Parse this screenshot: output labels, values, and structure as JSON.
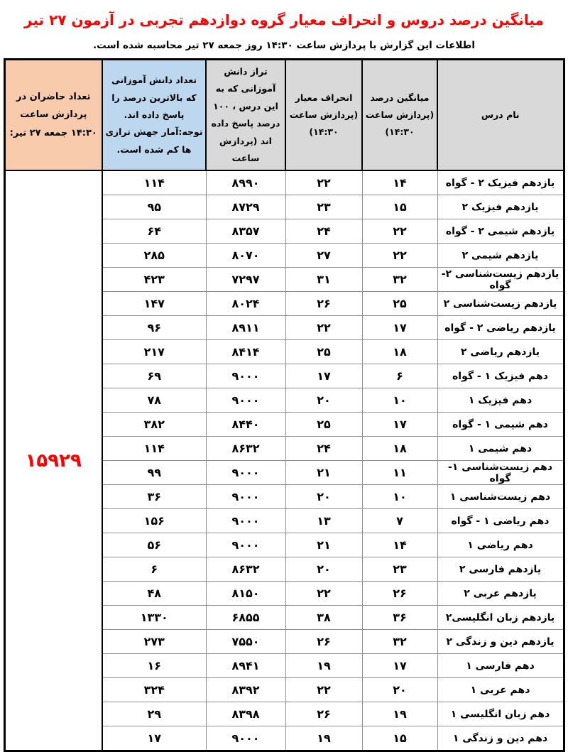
{
  "title": "میانگین درصد دروس و انحراف معیار گروه دوازدهم تجربی در آزمون ۲۷ تیر",
  "subtitle": "اطلاعات این گزارش با پردازش ساعت ۱۴:۳۰ روز جمعه ۲۷ تیر محاسبه شده است.",
  "colors": {
    "title_red": "#FF0000",
    "attendees_red": "#FF0000",
    "header_gray": "#D9D9D9",
    "header_blue": "#BDD7EE",
    "header_peach": "#F8CBAD"
  },
  "table": {
    "headers": {
      "lesson": "نام درس",
      "mean": "میانگین درصد (پردازش ساعت ۱۴:۳۰)",
      "stdev": "انحراف معیار (پردازش ساعت ۱۴:۳۰)",
      "score": "تراز دانش آموزانی که به این درس ، ۱۰۰ درصد پاسخ داده اند (پردازش ساعت",
      "top_count": "تعداد دانش آموزانی که بالاترین درصد را پاسخ داده اند. توجه:آمار جهش ترازی ها کم شده است.",
      "attendees": "تعداد حاضران در پردازش ساعت ۱۴:۳۰ جمعه ۲۷ تیر:"
    },
    "attendees_total": "۱۵۹۲۹",
    "rows": [
      {
        "lesson": "یازدهم فیزیک ۲ - گواه",
        "mean": "۱۴",
        "stdev": "۲۲",
        "score": "۸۹۹۰",
        "count": "۱۱۴"
      },
      {
        "lesson": "یازدهم فیزیک ۲",
        "mean": "۱۵",
        "stdev": "۲۳",
        "score": "۸۷۲۹",
        "count": "۹۵"
      },
      {
        "lesson": "یازدهم شیمی ۲ - گواه",
        "mean": "۲۲",
        "stdev": "۲۴",
        "score": "۸۳۵۷",
        "count": "۶۴"
      },
      {
        "lesson": "یازدهم شیمی ۲",
        "mean": "۲۲",
        "stdev": "۲۷",
        "score": "۸۰۷۰",
        "count": "۲۸۵"
      },
      {
        "lesson": "یازدهم زیست‌شناسی ۲-گواه",
        "mean": "۳۲",
        "stdev": "۳۱",
        "score": "۷۲۹۷",
        "count": "۴۲۳"
      },
      {
        "lesson": "یازدهم زیست‌شناسی ۲",
        "mean": "۲۵",
        "stdev": "۲۶",
        "score": "۸۰۲۴",
        "count": "۱۴۷"
      },
      {
        "lesson": "یازدهم ریاضی ۲ - گواه",
        "mean": "۱۷",
        "stdev": "۲۲",
        "score": "۸۹۱۱",
        "count": "۹۶"
      },
      {
        "lesson": "یازدهم ریاضی ۲",
        "mean": "۱۸",
        "stdev": "۲۵",
        "score": "۸۴۱۴",
        "count": "۲۱۷"
      },
      {
        "lesson": "دهم فیزیک ۱ - گواه",
        "mean": "۶",
        "stdev": "۱۷",
        "score": "۹۰۰۰",
        "count": "۶۹"
      },
      {
        "lesson": "دهم فیزیک ۱",
        "mean": "۱۰",
        "stdev": "۲۰",
        "score": "۹۰۰۰",
        "count": "۷۸"
      },
      {
        "lesson": "دهم شیمی ۱ - گواه",
        "mean": "۱۷",
        "stdev": "۲۵",
        "score": "۸۴۴۰",
        "count": "۳۸۲"
      },
      {
        "lesson": "دهم شیمی ۱",
        "mean": "۱۸",
        "stdev": "۲۴",
        "score": "۸۶۳۲",
        "count": "۱۱۴"
      },
      {
        "lesson": "دهم زیست‌شناسی ۱-گواه",
        "mean": "۱۱",
        "stdev": "۲۱",
        "score": "۹۰۰۰",
        "count": "۹۹"
      },
      {
        "lesson": "دهم زیست‌شناسی ۱",
        "mean": "۱۰",
        "stdev": "۲۰",
        "score": "۹۰۰۰",
        "count": "۳۶"
      },
      {
        "lesson": "دهم ریاضی ۱ - گواه",
        "mean": "۷",
        "stdev": "۱۳",
        "score": "۹۰۰۰",
        "count": "۱۵۶"
      },
      {
        "lesson": "دهم ریاضی ۱",
        "mean": "۱۴",
        "stdev": "۲۱",
        "score": "۹۰۰۰",
        "count": "۵۶"
      },
      {
        "lesson": "یازدهم فارسی ۲",
        "mean": "۲۳",
        "stdev": "۲۰",
        "score": "۸۶۳۲",
        "count": "۶"
      },
      {
        "lesson": "یازدهم عربی ۲",
        "mean": "۲۶",
        "stdev": "۲۲",
        "score": "۸۱۵۰",
        "count": "۴۸"
      },
      {
        "lesson": "یازدهم زبان انگلیسی۲",
        "mean": "۳۶",
        "stdev": "۳۸",
        "score": "۶۸۵۵",
        "count": "۱۳۳۰"
      },
      {
        "lesson": "یازدهم دین و زندگی ۲",
        "mean": "۳۲",
        "stdev": "۲۶",
        "score": "۷۵۵۰",
        "count": "۲۷۳"
      },
      {
        "lesson": "دهم فارسی ۱",
        "mean": "۱۷",
        "stdev": "۱۹",
        "score": "۸۹۴۱",
        "count": "۱۶"
      },
      {
        "lesson": "دهم عربی ۱",
        "mean": "۲۰",
        "stdev": "۲۲",
        "score": "۸۳۹۲",
        "count": "۳۲۴"
      },
      {
        "lesson": "دهم زبان انگلیسی ۱",
        "mean": "۱۹",
        "stdev": "۲۶",
        "score": "۸۳۹۸",
        "count": "۲۹"
      },
      {
        "lesson": "دهم دین و زندگی ۱",
        "mean": "۱۵",
        "stdev": "۱۹",
        "score": "۹۰۰۰",
        "count": "۱۷"
      }
    ]
  }
}
